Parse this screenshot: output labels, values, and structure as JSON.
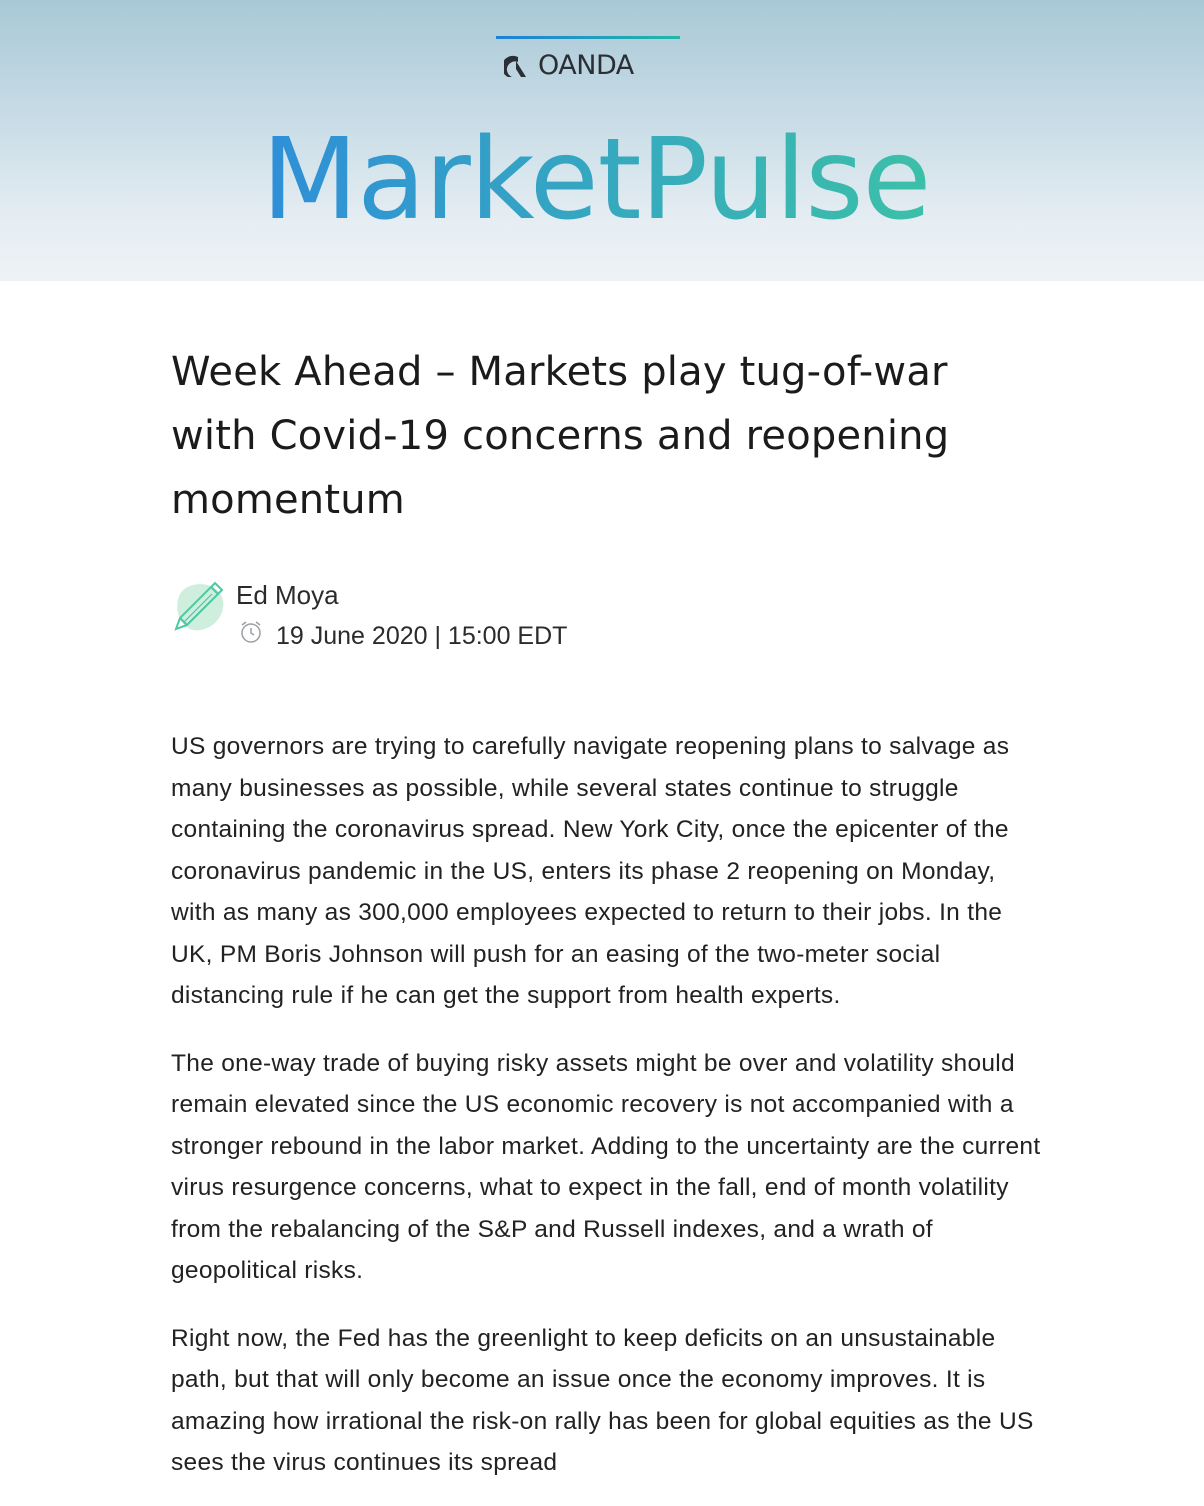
{
  "header": {
    "oanda_label": "OANDA",
    "brand_left": "Market",
    "brand_right": "Pulse",
    "colors": {
      "brand_blue": "#2f8fd8",
      "brand_teal": "#3cc0a8",
      "oanda_dark": "#2a2f36"
    }
  },
  "article": {
    "title": "Week Ahead – Markets play tug-of-war with Covid-19 concerns and reopening momentum",
    "author": "Ed Moya",
    "date": "19 June 2020 | 15:00 EDT",
    "paragraphs": [
      "US governors are trying to carefully navigate reopening plans to salvage as many businesses as possible, while several states continue to struggle containing the coronavirus spread. New York City, once the epicenter of the coronavirus pandemic in the US, enters its phase 2 reopening on Monday, with as many as 300,000 employees expected to return to their jobs. In the UK, PM Boris Johnson will push for an easing of the two-meter social distancing rule if he can get the support from health experts.",
      "The one-way trade of buying risky assets might be over and volatility should remain elevated since the US economic recovery is not accompanied with a stronger rebound in the labor market. Adding to the uncertainty are the current virus resurgence concerns, what to expect in the fall, end of month volatility from the rebalancing of the S&P and Russell indexes, and a wrath of geopolitical risks.",
      "Right now, the Fed has the greenlight to keep deficits on an unsustainable path, but that will only become an issue once the economy improves. It is amazing how irrational the risk-on rally has been for global equities as the US sees the virus continues its spread"
    ]
  }
}
